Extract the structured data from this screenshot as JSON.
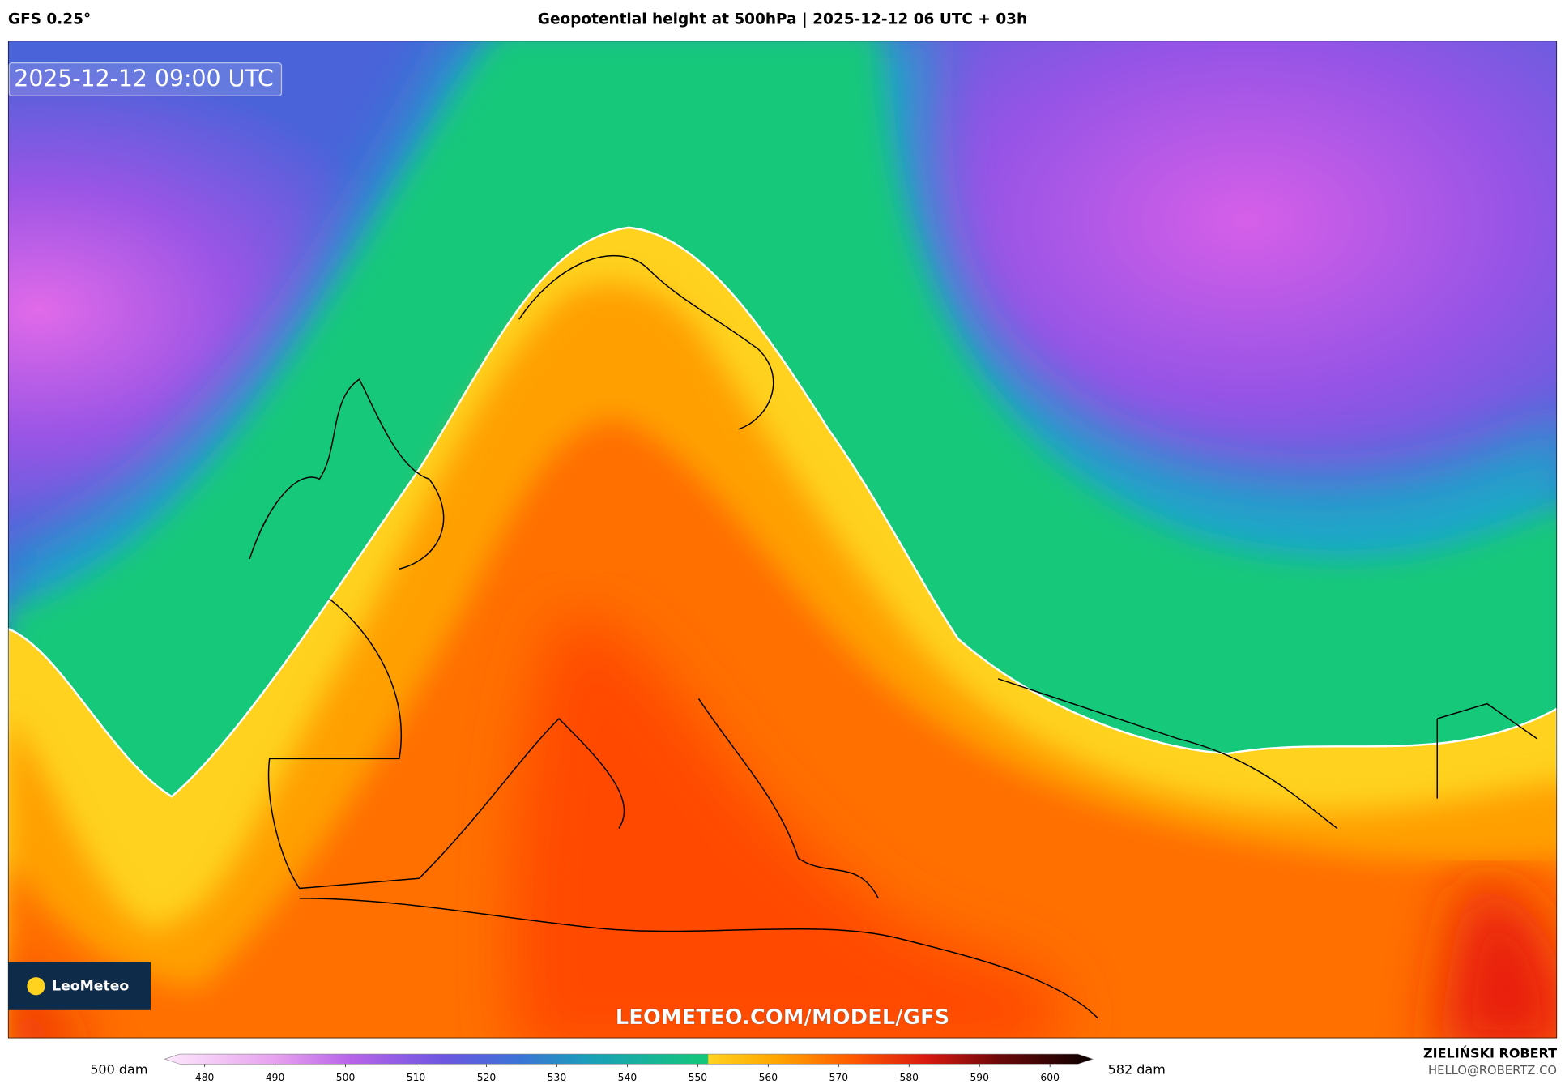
{
  "header": {
    "model": "GFS 0.25°",
    "title": "Geopotential height at 500hPa | 2025-12-12 06 UTC + 03h"
  },
  "map": {
    "valid_time": "2025-12-12 09:00 UTC",
    "logo": "LeoMeteo",
    "watermark": "LEOMETEO.COM/MODEL/GFS"
  },
  "colorbar": {
    "min_label": "500 dam",
    "max_label": "582 dam",
    "ticks": [
      480,
      490,
      500,
      510,
      520,
      530,
      540,
      550,
      560,
      570,
      580,
      590,
      600
    ]
  },
  "credits": {
    "author": "ZIELIŃSKI ROBERT",
    "email": "HELLO@ROBERTZ.CO"
  }
}
